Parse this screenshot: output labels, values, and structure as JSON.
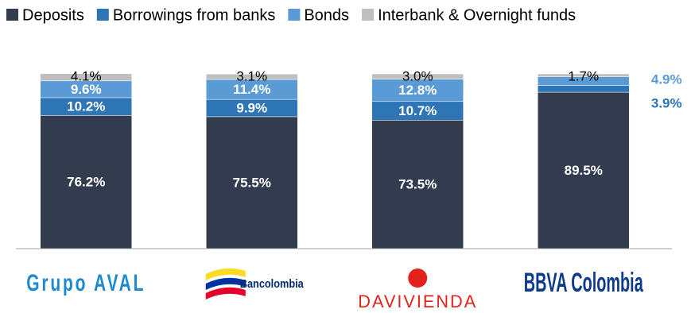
{
  "chart_data": {
    "type": "stacked_bar",
    "categories": [
      "Grupo AVAL",
      "Bancolombia",
      "DAVIVIENDA",
      "BBVA Colombia"
    ],
    "series": [
      {
        "name": "Deposits",
        "color": "#333c4e",
        "values": [
          76.2,
          75.5,
          73.5,
          89.5
        ],
        "value_labels": [
          "76.2%",
          "75.5%",
          "73.5%",
          "89.5%"
        ]
      },
      {
        "name": "Borrowings from banks",
        "color": "#2e75b6",
        "values": [
          10.2,
          9.9,
          10.7,
          3.9
        ],
        "value_labels": [
          "10.2%",
          "9.9%",
          "10.7%",
          "3.9%"
        ]
      },
      {
        "name": "Bonds",
        "color": "#5b9bd5",
        "values": [
          9.6,
          11.4,
          12.8,
          4.9
        ],
        "value_labels": [
          "9.6%",
          "11.4%",
          "12.8%",
          "4.9%"
        ]
      },
      {
        "name": "Interbank & Overnight funds",
        "color": "#bfbfbf",
        "values": [
          4.1,
          3.1,
          3.0,
          1.7
        ],
        "value_labels": [
          "4.1%",
          "3.1%",
          "3.0%",
          "1.7%"
        ]
      }
    ],
    "ylim": [
      0,
      100
    ],
    "legend": "top"
  }
}
